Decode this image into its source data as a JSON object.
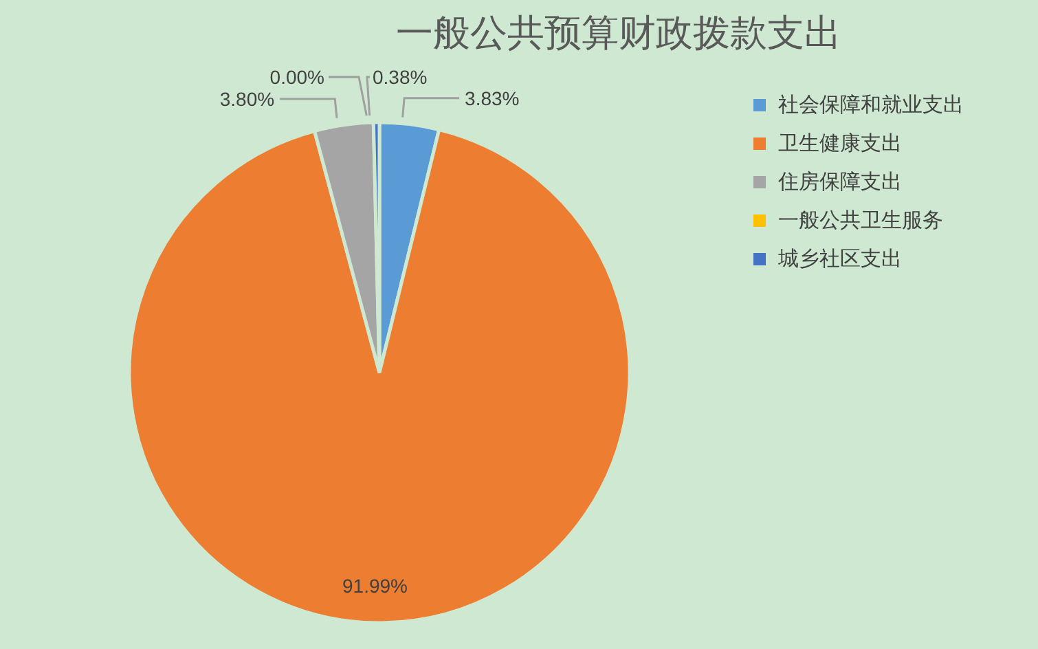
{
  "chart_data": {
    "type": "pie",
    "title": "一般公共预算财政拨款支出",
    "categories": [
      "社会保障和就业支出",
      "卫生健康支出",
      "住房保障支出",
      "一般公共卫生服务",
      "城乡社区支出"
    ],
    "values": [
      3.83,
      91.99,
      3.8,
      0.0,
      0.38
    ],
    "value_labels": [
      "3.83%",
      "91.99%",
      "3.80%",
      "0.00%",
      "0.38%"
    ],
    "colors": [
      "#5b9bd5",
      "#ed7d31",
      "#a5a5a5",
      "#ffc000",
      "#4472c4"
    ],
    "legend": "right"
  }
}
